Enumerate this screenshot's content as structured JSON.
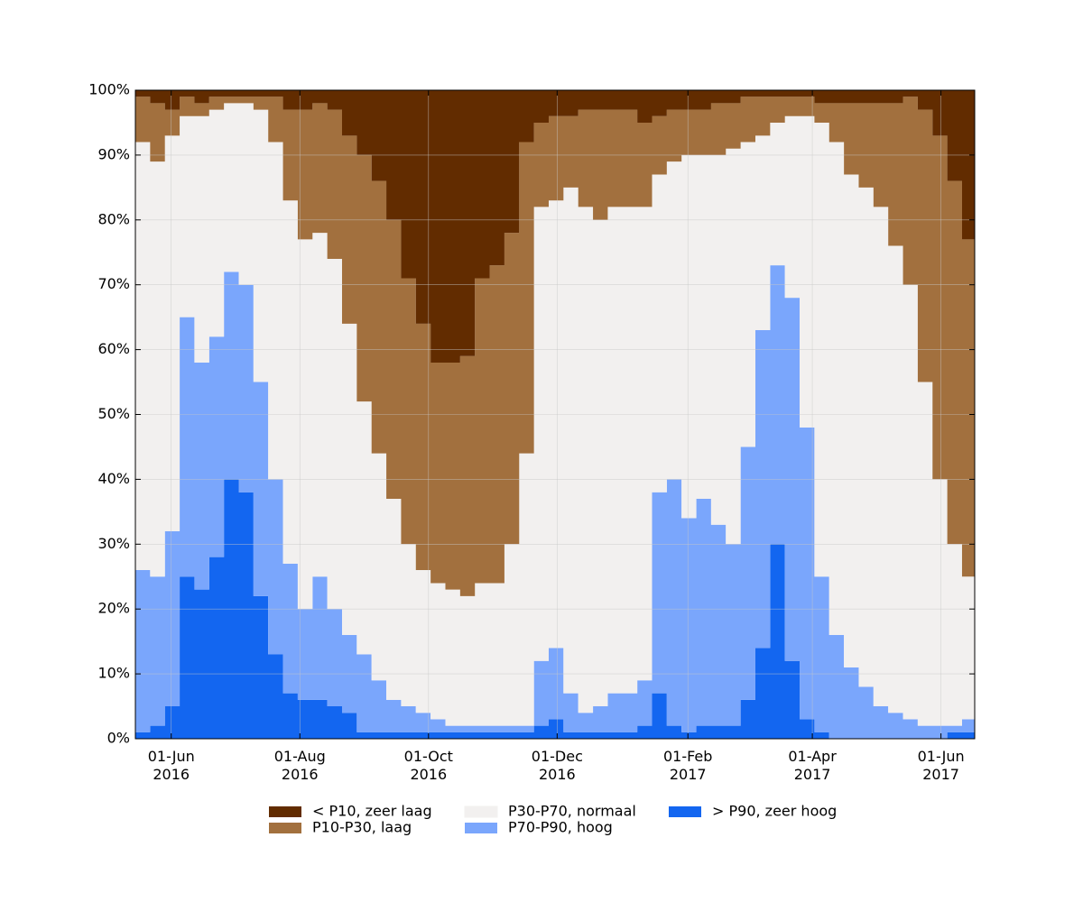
{
  "chart_data": {
    "type": "stacked-step-area",
    "x": [
      "2016-05-15",
      "2016-05-22",
      "2016-05-29",
      "2016-06-05",
      "2016-06-12",
      "2016-06-19",
      "2016-06-26",
      "2016-07-03",
      "2016-07-10",
      "2016-07-17",
      "2016-07-24",
      "2016-07-31",
      "2016-08-07",
      "2016-08-14",
      "2016-08-21",
      "2016-08-28",
      "2016-09-04",
      "2016-09-11",
      "2016-09-18",
      "2016-09-25",
      "2016-10-02",
      "2016-10-09",
      "2016-10-16",
      "2016-10-23",
      "2016-10-30",
      "2016-11-06",
      "2016-11-13",
      "2016-11-20",
      "2016-11-27",
      "2016-12-04",
      "2016-12-11",
      "2016-12-18",
      "2016-12-25",
      "2017-01-01",
      "2017-01-08",
      "2017-01-15",
      "2017-01-22",
      "2017-01-29",
      "2017-02-05",
      "2017-02-12",
      "2017-02-19",
      "2017-02-26",
      "2017-03-05",
      "2017-03-12",
      "2017-03-19",
      "2017-03-26",
      "2017-04-02",
      "2017-04-09",
      "2017-04-16",
      "2017-04-23",
      "2017-04-30",
      "2017-05-07",
      "2017-05-14",
      "2017-05-21",
      "2017-05-28",
      "2017-06-04",
      "2017-06-11"
    ],
    "series": [
      {
        "name": "< P10, zeer laag",
        "color": "#622c00",
        "values": [
          1,
          2,
          3,
          1,
          2,
          1,
          1,
          1,
          1,
          1,
          3,
          3,
          2,
          3,
          7,
          10,
          14,
          20,
          29,
          36,
          42,
          42,
          41,
          29,
          27,
          22,
          8,
          5,
          4,
          4,
          3,
          3,
          3,
          3,
          5,
          4,
          3,
          3,
          3,
          2,
          2,
          1,
          1,
          1,
          1,
          1,
          2,
          2,
          2,
          2,
          2,
          2,
          1,
          3,
          7,
          14,
          23
        ]
      },
      {
        "name": "P10-P30, laag",
        "color": "#a2703e",
        "values": [
          7,
          9,
          4,
          3,
          2,
          2,
          1,
          1,
          2,
          7,
          14,
          20,
          20,
          23,
          29,
          38,
          42,
          43,
          41,
          38,
          34,
          35,
          37,
          47,
          49,
          48,
          48,
          13,
          13,
          11,
          15,
          17,
          15,
          15,
          13,
          9,
          8,
          7,
          7,
          8,
          7,
          7,
          6,
          4,
          3,
          3,
          3,
          6,
          11,
          13,
          16,
          22,
          29,
          42,
          53,
          56,
          52
        ]
      },
      {
        "name": "P30-P70, normaal",
        "color": "#f2f0ef",
        "values": [
          66,
          64,
          61,
          31,
          38,
          35,
          26,
          28,
          42,
          52,
          56,
          57,
          53,
          54,
          48,
          39,
          35,
          31,
          25,
          22,
          21,
          21,
          20,
          22,
          22,
          28,
          42,
          70,
          69,
          78,
          78,
          75,
          75,
          75,
          73,
          49,
          49,
          56,
          53,
          57,
          61,
          47,
          30,
          22,
          28,
          48,
          70,
          76,
          76,
          77,
          77,
          72,
          67,
          53,
          38,
          28,
          22
        ]
      },
      {
        "name": "P70-P90, hoog",
        "color": "#7aa6fc",
        "values": [
          25,
          23,
          27,
          40,
          35,
          34,
          32,
          32,
          33,
          27,
          20,
          14,
          19,
          15,
          12,
          12,
          8,
          5,
          4,
          3,
          2,
          1,
          1,
          1,
          1,
          1,
          1,
          10,
          11,
          6,
          3,
          4,
          6,
          6,
          7,
          31,
          38,
          33,
          35,
          31,
          28,
          39,
          49,
          43,
          56,
          45,
          24,
          16,
          11,
          8,
          5,
          4,
          3,
          2,
          2,
          1,
          2
        ]
      },
      {
        "name": "> P90, zeer hoog",
        "color": "#1366f0",
        "values": [
          1,
          2,
          5,
          25,
          23,
          28,
          40,
          38,
          22,
          13,
          7,
          6,
          6,
          5,
          4,
          1,
          1,
          1,
          1,
          1,
          1,
          1,
          1,
          1,
          1,
          1,
          1,
          2,
          3,
          1,
          1,
          1,
          1,
          1,
          2,
          7,
          2,
          1,
          2,
          2,
          2,
          6,
          14,
          30,
          12,
          3,
          1,
          0,
          0,
          0,
          0,
          0,
          0,
          0,
          0,
          1,
          1
        ]
      }
    ],
    "xlim": [
      "2016-05-15",
      "2017-06-17"
    ],
    "xticks": [
      {
        "value": "2016-06-01",
        "label": "01-Jun\n2016"
      },
      {
        "value": "2016-08-01",
        "label": "01-Aug\n2016"
      },
      {
        "value": "2016-10-01",
        "label": "01-Oct\n2016"
      },
      {
        "value": "2016-12-01",
        "label": "01-Dec\n2016"
      },
      {
        "value": "2017-02-01",
        "label": "01-Feb\n2017"
      },
      {
        "value": "2017-04-01",
        "label": "01-Apr\n2017"
      },
      {
        "value": "2017-06-01",
        "label": "01-Jun\n2017"
      }
    ],
    "ylim": [
      0,
      100
    ],
    "yticks": [
      {
        "value": 0,
        "label": "0%"
      },
      {
        "value": 10,
        "label": "10%"
      },
      {
        "value": 20,
        "label": "20%"
      },
      {
        "value": 30,
        "label": "30%"
      },
      {
        "value": 40,
        "label": "40%"
      },
      {
        "value": 50,
        "label": "50%"
      },
      {
        "value": 60,
        "label": "60%"
      },
      {
        "value": 70,
        "label": "70%"
      },
      {
        "value": 80,
        "label": "80%"
      },
      {
        "value": 90,
        "label": "90%"
      },
      {
        "value": 100,
        "label": "100%"
      }
    ],
    "grid": true,
    "legend": "bottom"
  }
}
